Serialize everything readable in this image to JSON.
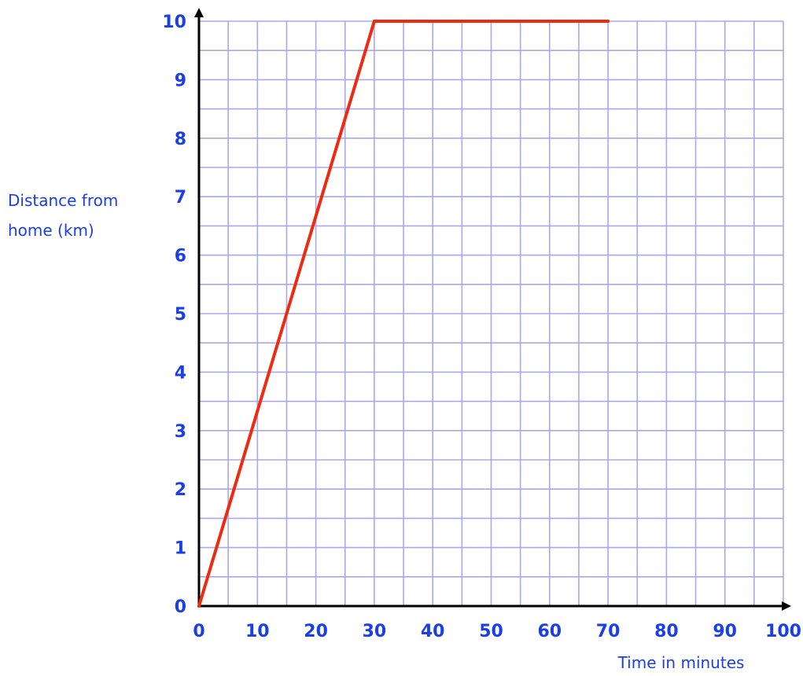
{
  "chart_data": {
    "type": "line",
    "xlabel": "Time in minutes",
    "ylabel": [
      "Distance from",
      "home (km)"
    ],
    "xlim": [
      0,
      100
    ],
    "ylim": [
      0,
      10
    ],
    "x_ticks": [
      0,
      10,
      20,
      30,
      40,
      50,
      60,
      70,
      80,
      90,
      100
    ],
    "y_ticks": [
      0,
      1,
      2,
      3,
      4,
      5,
      6,
      7,
      8,
      9,
      10
    ],
    "grid": true,
    "minor_grid_step_x": 5,
    "minor_grid_step_y": 0.5,
    "series": [
      {
        "x": [
          0,
          30,
          70
        ],
        "y": [
          0,
          10,
          10
        ]
      }
    ]
  },
  "colors": {
    "grid": "#a8a8f0",
    "axis": "#000000",
    "line": "#ee2a10",
    "labels": "#1a3ee8"
  }
}
